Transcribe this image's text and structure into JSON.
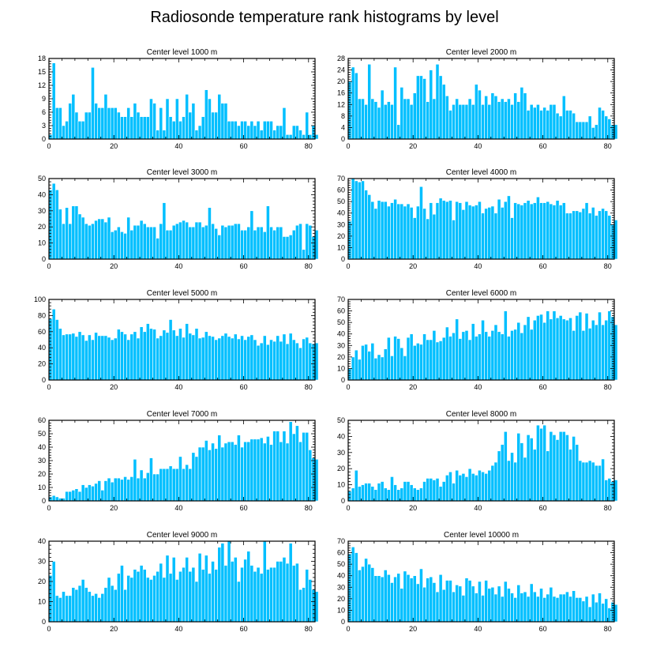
{
  "title": "Radiosonde temperature rank histograms by level",
  "colors": {
    "bar": "#00bfff",
    "bar_edge": "#ffffff",
    "axis": "#000000"
  },
  "chart_data": [
    {
      "type": "bar",
      "title": "Center level 1000 m",
      "xlabel": "",
      "ylabel": "",
      "xlim": [
        0,
        82
      ],
      "ylim": [
        0,
        18
      ],
      "xticks": [
        0,
        20,
        40,
        60,
        80
      ],
      "yticks": [
        0,
        3,
        6,
        9,
        12,
        15,
        18
      ],
      "values": [
        1,
        17,
        7,
        7,
        3,
        4,
        8,
        10,
        6,
        4,
        4,
        6,
        6,
        16,
        8,
        7,
        7,
        10,
        7,
        7,
        7,
        6,
        5,
        5,
        7,
        5,
        8,
        6,
        5,
        5,
        5,
        9,
        8,
        2,
        7,
        2,
        9,
        5,
        4,
        9,
        4,
        5,
        10,
        6,
        8,
        2,
        3,
        5,
        11,
        9,
        6,
        6,
        10,
        8,
        8,
        4,
        4,
        4,
        3,
        4,
        4,
        3,
        4,
        3,
        4,
        2,
        4,
        4,
        4,
        2,
        3,
        3,
        7,
        1,
        1,
        3,
        3,
        2,
        1,
        6,
        1,
        3,
        1
      ],
      "x_start": 0
    },
    {
      "type": "bar",
      "title": "Center level 2000 m",
      "xlabel": "",
      "ylabel": "",
      "xlim": [
        0,
        82
      ],
      "ylim": [
        0,
        28
      ],
      "xticks": [
        0,
        20,
        40,
        60,
        80
      ],
      "yticks": [
        0,
        4,
        8,
        12,
        16,
        20,
        24,
        28
      ],
      "values": [
        20,
        25,
        23,
        14,
        14,
        12,
        26,
        14,
        13,
        11,
        17,
        12,
        13,
        12,
        25,
        5,
        18,
        14,
        14,
        12,
        16,
        22,
        22,
        21,
        13,
        24,
        14,
        26,
        22,
        19,
        15,
        10,
        12,
        14,
        12,
        12,
        12,
        14,
        12,
        19,
        17,
        12,
        15,
        12,
        16,
        15,
        13,
        14,
        13,
        14,
        12,
        16,
        13,
        18,
        16,
        10,
        12,
        11,
        12,
        10,
        11,
        10,
        12,
        12,
        9,
        8,
        15,
        10,
        10,
        9,
        6,
        6,
        6,
        6,
        8,
        4,
        5,
        11,
        10,
        8,
        7,
        5,
        5
      ],
      "x_start": 0
    },
    {
      "type": "bar",
      "title": "Center level 3000 m",
      "xlabel": "",
      "ylabel": "",
      "xlim": [
        0,
        82
      ],
      "ylim": [
        0,
        50
      ],
      "xticks": [
        0,
        20,
        40,
        60,
        80
      ],
      "yticks": [
        0,
        10,
        20,
        30,
        40,
        50
      ],
      "values": [
        43,
        47,
        43,
        31,
        22,
        32,
        22,
        33,
        33,
        28,
        26,
        22,
        21,
        22,
        24,
        25,
        25,
        23,
        26,
        17,
        18,
        20,
        17,
        16,
        26,
        18,
        21,
        21,
        24,
        22,
        20,
        20,
        20,
        13,
        22,
        35,
        18,
        18,
        21,
        22,
        23,
        24,
        23,
        20,
        20,
        23,
        23,
        20,
        21,
        32,
        22,
        19,
        15,
        21,
        20,
        21,
        21,
        22,
        22,
        18,
        18,
        20,
        30,
        18,
        20,
        20,
        17,
        33,
        20,
        18,
        20,
        20,
        14,
        14,
        15,
        18,
        21,
        22,
        6,
        22,
        21,
        14,
        18
      ],
      "x_start": 0
    },
    {
      "type": "bar",
      "title": "Center level 4000 m",
      "xlabel": "",
      "ylabel": "",
      "xlim": [
        0,
        82
      ],
      "ylim": [
        0,
        70
      ],
      "xticks": [
        0,
        20,
        40,
        60,
        80
      ],
      "yticks": [
        0,
        10,
        20,
        30,
        40,
        50,
        60,
        70
      ],
      "values": [
        33,
        70,
        68,
        67,
        68,
        60,
        56,
        50,
        44,
        51,
        50,
        50,
        46,
        49,
        52,
        48,
        48,
        46,
        48,
        45,
        36,
        46,
        63,
        44,
        35,
        49,
        39,
        49,
        53,
        51,
        50,
        51,
        34,
        50,
        49,
        43,
        50,
        47,
        46,
        47,
        50,
        40,
        44,
        45,
        46,
        40,
        52,
        45,
        50,
        55,
        36,
        49,
        48,
        47,
        49,
        51,
        48,
        49,
        54,
        49,
        49,
        50,
        48,
        47,
        51,
        47,
        49,
        40,
        40,
        42,
        42,
        41,
        44,
        49,
        40,
        45,
        38,
        42,
        44,
        42,
        38,
        30,
        34
      ],
      "x_start": 0
    },
    {
      "type": "bar",
      "title": "Center level 5000 m",
      "xlabel": "",
      "ylabel": "",
      "xlim": [
        0,
        82
      ],
      "ylim": [
        0,
        100
      ],
      "xticks": [
        0,
        20,
        40,
        60,
        80
      ],
      "yticks": [
        0,
        20,
        40,
        60,
        80,
        100
      ],
      "values": [
        76,
        88,
        75,
        64,
        56,
        57,
        57,
        58,
        54,
        60,
        56,
        49,
        56,
        50,
        59,
        55,
        55,
        55,
        53,
        50,
        52,
        63,
        60,
        57,
        50,
        57,
        60,
        52,
        66,
        60,
        70,
        64,
        63,
        52,
        55,
        62,
        59,
        75,
        62,
        55,
        64,
        53,
        70,
        58,
        56,
        64,
        52,
        53,
        60,
        55,
        54,
        50,
        52,
        55,
        58,
        54,
        52,
        57,
        51,
        55,
        50,
        54,
        56,
        50,
        43,
        46,
        55,
        44,
        50,
        48,
        55,
        48,
        57,
        45,
        58,
        50,
        46,
        40,
        51,
        53,
        46,
        45,
        46
      ],
      "x_start": 0
    },
    {
      "type": "bar",
      "title": "Center level 6000 m",
      "xlabel": "",
      "ylabel": "",
      "xlim": [
        0,
        82
      ],
      "ylim": [
        0,
        70
      ],
      "xticks": [
        0,
        20,
        40,
        60,
        80
      ],
      "yticks": [
        0,
        10,
        20,
        30,
        40,
        50,
        60,
        70
      ],
      "values": [
        10,
        20,
        26,
        18,
        30,
        31,
        25,
        32,
        19,
        22,
        20,
        27,
        37,
        21,
        38,
        36,
        28,
        21,
        37,
        40,
        30,
        32,
        31,
        40,
        35,
        35,
        43,
        33,
        34,
        37,
        46,
        38,
        41,
        53,
        36,
        42,
        43,
        35,
        49,
        38,
        40,
        52,
        42,
        38,
        43,
        48,
        42,
        40,
        60,
        38,
        43,
        44,
        50,
        41,
        48,
        55,
        44,
        52,
        56,
        57,
        50,
        60,
        53,
        60,
        54,
        56,
        53,
        52,
        54,
        43,
        56,
        59,
        43,
        58,
        45,
        52,
        48,
        59,
        48,
        52,
        60,
        55,
        48
      ],
      "x_start": 0
    },
    {
      "type": "bar",
      "title": "Center level 7000 m",
      "xlabel": "",
      "ylabel": "",
      "xlim": [
        0,
        82
      ],
      "ylim": [
        0,
        60
      ],
      "xticks": [
        0,
        20,
        40,
        60,
        80
      ],
      "yticks": [
        0,
        10,
        20,
        30,
        40,
        50,
        60
      ],
      "values": [
        3,
        4,
        3,
        2,
        2,
        7,
        7,
        8,
        9,
        7,
        12,
        10,
        12,
        11,
        13,
        15,
        8,
        15,
        17,
        14,
        17,
        17,
        16,
        18,
        16,
        18,
        31,
        17,
        23,
        17,
        21,
        32,
        20,
        20,
        24,
        24,
        24,
        26,
        24,
        24,
        33,
        24,
        27,
        24,
        36,
        33,
        40,
        40,
        45,
        38,
        43,
        39,
        49,
        40,
        43,
        44,
        44,
        42,
        49,
        40,
        44,
        44,
        46,
        46,
        46,
        47,
        43,
        48,
        42,
        52,
        52,
        44,
        52,
        43,
        59,
        50,
        56,
        44,
        51,
        51,
        38,
        32,
        31
      ],
      "x_start": 0
    },
    {
      "type": "bar",
      "title": "Center level 8000 m",
      "xlabel": "",
      "ylabel": "",
      "xlim": [
        0,
        82
      ],
      "ylim": [
        0,
        50
      ],
      "xticks": [
        0,
        20,
        40,
        60,
        80
      ],
      "yticks": [
        0,
        10,
        20,
        30,
        40,
        50
      ],
      "values": [
        6,
        8,
        19,
        9,
        10,
        11,
        11,
        9,
        7,
        11,
        12,
        8,
        7,
        15,
        10,
        7,
        8,
        12,
        12,
        10,
        8,
        7,
        8,
        12,
        14,
        14,
        13,
        14,
        9,
        12,
        16,
        18,
        11,
        19,
        16,
        17,
        15,
        20,
        17,
        16,
        19,
        18,
        17,
        19,
        22,
        24,
        31,
        35,
        43,
        25,
        30,
        24,
        42,
        36,
        27,
        41,
        39,
        32,
        47,
        45,
        47,
        31,
        43,
        41,
        38,
        43,
        43,
        41,
        32,
        40,
        35,
        25,
        24,
        24,
        25,
        24,
        22,
        22,
        26,
        13,
        14,
        12,
        13
      ],
      "x_start": 0
    },
    {
      "type": "bar",
      "title": "Center level 9000 m",
      "xlabel": "",
      "ylabel": "",
      "xlim": [
        0,
        82
      ],
      "ylim": [
        0,
        40
      ],
      "xticks": [
        0,
        20,
        40,
        60,
        80
      ],
      "yticks": [
        0,
        10,
        20,
        30,
        40
      ],
      "values": [
        23,
        30,
        13,
        12,
        15,
        13,
        13,
        17,
        16,
        18,
        21,
        17,
        15,
        13,
        14,
        12,
        14,
        17,
        22,
        18,
        16,
        24,
        28,
        16,
        23,
        22,
        26,
        25,
        28,
        26,
        22,
        21,
        23,
        25,
        29,
        22,
        33,
        24,
        32,
        21,
        25,
        27,
        32,
        25,
        27,
        20,
        34,
        26,
        33,
        24,
        30,
        26,
        37,
        39,
        28,
        40,
        30,
        32,
        20,
        27,
        31,
        35,
        28,
        25,
        27,
        24,
        40,
        26,
        27,
        27,
        30,
        30,
        32,
        29,
        39,
        28,
        29,
        16,
        17,
        26,
        21,
        16,
        15
      ],
      "x_start": 0
    },
    {
      "type": "bar",
      "title": "Center level 10000 m",
      "xlabel": "",
      "ylabel": "",
      "xlim": [
        0,
        82
      ],
      "ylim": [
        0,
        70
      ],
      "xticks": [
        0,
        20,
        40,
        60,
        80
      ],
      "yticks": [
        0,
        10,
        20,
        30,
        40,
        50,
        60,
        70
      ],
      "values": [
        59,
        65,
        60,
        45,
        48,
        55,
        50,
        47,
        40,
        40,
        39,
        45,
        41,
        34,
        39,
        42,
        29,
        44,
        41,
        38,
        40,
        33,
        46,
        30,
        38,
        39,
        34,
        26,
        41,
        28,
        36,
        36,
        26,
        32,
        31,
        23,
        38,
        36,
        31,
        25,
        35,
        23,
        36,
        29,
        30,
        24,
        31,
        22,
        35,
        29,
        25,
        21,
        32,
        25,
        26,
        22,
        33,
        26,
        22,
        29,
        21,
        24,
        30,
        22,
        21,
        24,
        24,
        26,
        22,
        27,
        21,
        21,
        18,
        22,
        13,
        24,
        17,
        25,
        16,
        20,
        12,
        17,
        15
      ],
      "x_start": 0
    }
  ]
}
